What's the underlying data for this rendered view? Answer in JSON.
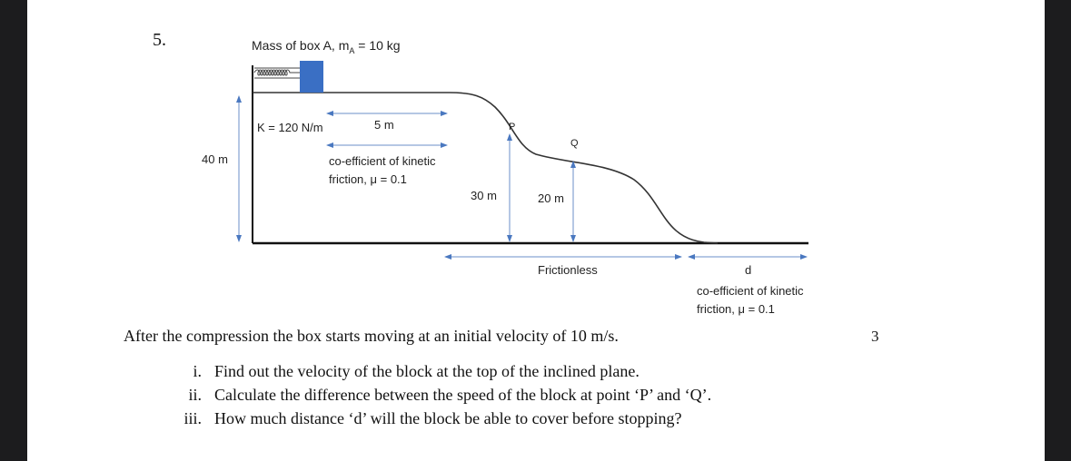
{
  "question": {
    "number": "5.",
    "marks": "3",
    "statement": "After the compression the box starts moving at an initial velocity of 10 m/s.",
    "subparts": [
      {
        "label": "i.",
        "text": "Find out the velocity of the block at the top of the inclined plane."
      },
      {
        "label": "ii.",
        "text": "Calculate the difference between the speed of the block at point ‘P’ and ‘Q’."
      },
      {
        "label": "iii.",
        "text": "How much distance ‘d’ will the block be able to cover before stopping?"
      }
    ]
  },
  "diagram": {
    "mass_label": "Mass of box A, m",
    "mass_subscript": "A",
    "mass_value": " = 10 kg",
    "spring_label": "K = 120 N/m",
    "flat_length": "5 m",
    "friction_top_line1": "co-efficient of kinetic",
    "friction_top_line2": "friction, μ = 0.1",
    "height_total": "40 m",
    "height_p": "30 m",
    "height_q": "20 m",
    "point_p": "P",
    "point_q": "Q",
    "frictionless": "Frictionless",
    "distance": "d",
    "friction_bottom_line1": "co-efficient of kinetic",
    "friction_bottom_line2": "friction, μ = 0.1",
    "colors": {
      "box": "#3a6fc4",
      "arrow": "#4a78c0",
      "line": "#111111"
    }
  }
}
